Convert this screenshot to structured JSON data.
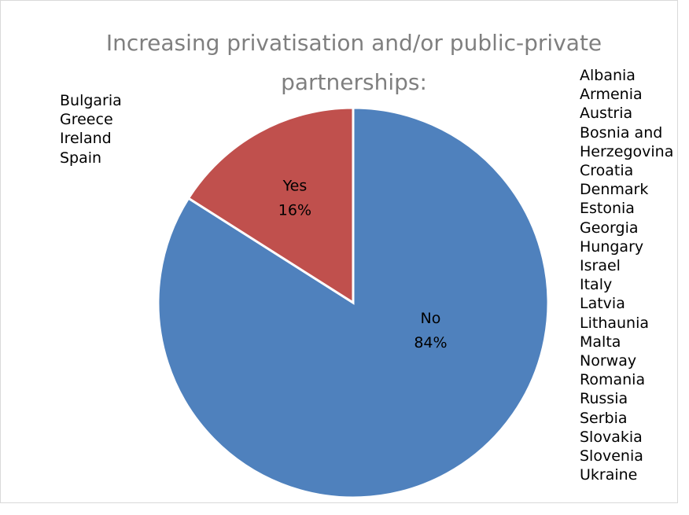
{
  "chart_data": {
    "type": "pie",
    "title": "Increasing privatisation and/or public-private partnerships:",
    "title_lines": [
      "Increasing privatisation and/or public-private",
      "partnerships:"
    ],
    "slices": [
      {
        "label": "Yes",
        "percent_label": "16%",
        "value": 16,
        "color": "#c0504d"
      },
      {
        "label": "No",
        "percent_label": "84%",
        "value": 84,
        "color": "#4f81bd"
      }
    ],
    "annotations": {
      "yes_countries": [
        "Bulgaria",
        "Greece",
        "Ireland",
        "Spain"
      ],
      "no_countries": [
        "Albania",
        "Armenia",
        "Austria",
        "Bosnia and",
        "Herzegovina",
        "Croatia",
        "Denmark",
        "Estonia",
        "Georgia",
        "Hungary",
        "Israel",
        "Italy",
        "Latvia",
        "Lithaunia",
        "Malta",
        "Norway",
        "Romania",
        "Russia",
        "Serbia",
        "Slovakia",
        "Slovenia",
        "Ukraine"
      ]
    },
    "legend": "none"
  }
}
